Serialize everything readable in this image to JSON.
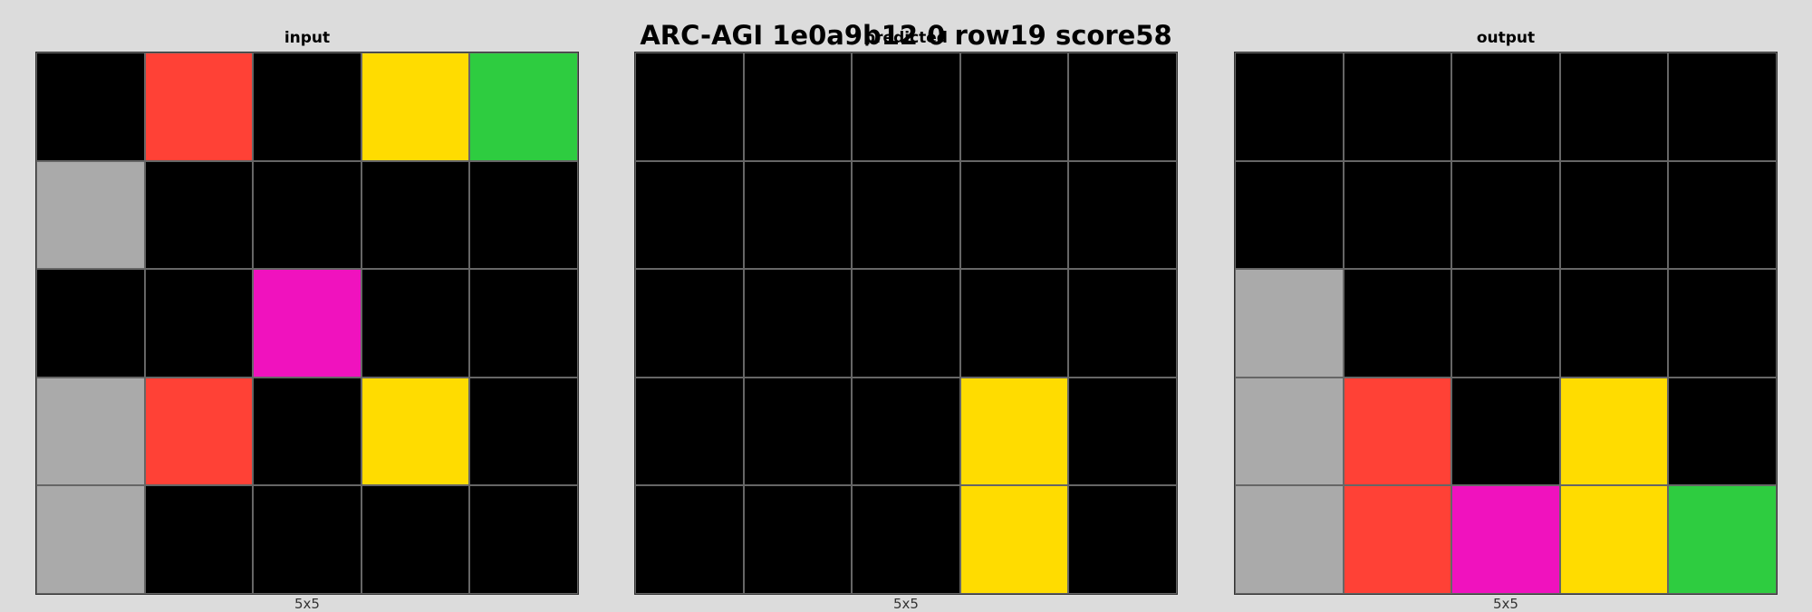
{
  "title": "ARC-AGI 1e0a9b12 0 row19 score58",
  "palette": {
    "0": "#000000",
    "1": "#1e93ff",
    "2": "#ff4136",
    "3": "#2ecc40",
    "4": "#ffdc00",
    "5": "#aaaaaa",
    "6": "#f012be",
    "7": "#ff851b",
    "8": "#7fdbff",
    "9": "#870c25"
  },
  "panels": [
    {
      "title": "input",
      "caption": "5x5",
      "grid": [
        [
          0,
          2,
          0,
          4,
          3
        ],
        [
          5,
          0,
          0,
          0,
          0
        ],
        [
          0,
          0,
          6,
          0,
          0
        ],
        [
          5,
          2,
          0,
          4,
          0
        ],
        [
          5,
          0,
          0,
          0,
          0
        ]
      ]
    },
    {
      "title": "predicted",
      "caption": "5x5",
      "grid": [
        [
          0,
          0,
          0,
          0,
          0
        ],
        [
          0,
          0,
          0,
          0,
          0
        ],
        [
          0,
          0,
          0,
          0,
          0
        ],
        [
          0,
          0,
          0,
          4,
          0
        ],
        [
          0,
          0,
          0,
          4,
          0
        ]
      ]
    },
    {
      "title": "output",
      "caption": "5x5",
      "grid": [
        [
          0,
          0,
          0,
          0,
          0
        ],
        [
          0,
          0,
          0,
          0,
          0
        ],
        [
          5,
          0,
          0,
          0,
          0
        ],
        [
          5,
          2,
          0,
          4,
          0
        ],
        [
          5,
          2,
          6,
          4,
          3
        ]
      ]
    }
  ]
}
